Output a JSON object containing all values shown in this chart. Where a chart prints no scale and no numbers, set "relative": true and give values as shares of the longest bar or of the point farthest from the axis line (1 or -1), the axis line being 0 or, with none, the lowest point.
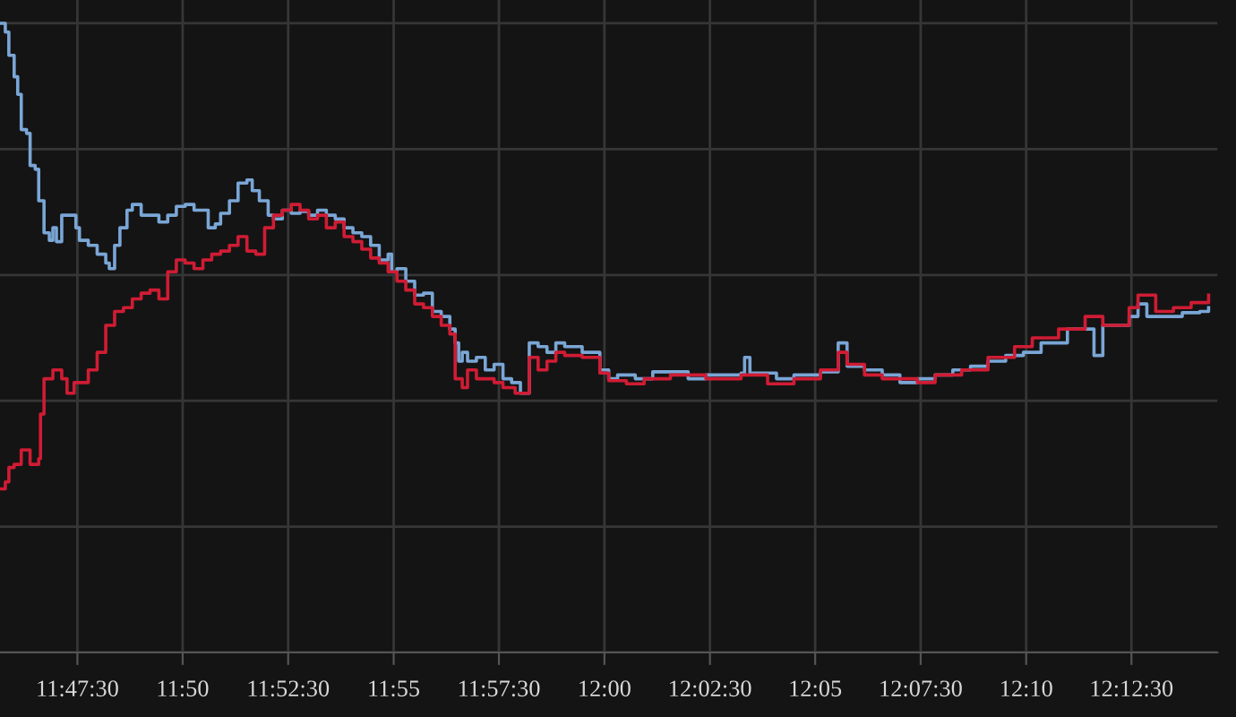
{
  "chart_data": {
    "type": "step",
    "relative": true,
    "grid": true,
    "xlim": [
      11.7611,
      12.2423
    ],
    "xticks": [
      {
        "value": 11.7917,
        "label": "11:47:30"
      },
      {
        "value": 11.8333,
        "label": "11:50"
      },
      {
        "value": 11.875,
        "label": "11:52:30"
      },
      {
        "value": 11.9167,
        "label": "11:55"
      },
      {
        "value": 11.9583,
        "label": "11:57:30"
      },
      {
        "value": 12.0,
        "label": "12:00"
      },
      {
        "value": 12.0417,
        "label": "12:02:30"
      },
      {
        "value": 12.0833,
        "label": "12:05"
      },
      {
        "value": 12.125,
        "label": "12:07:30"
      },
      {
        "value": 12.1667,
        "label": "12:10"
      },
      {
        "value": 12.2083,
        "label": "12:12:30"
      }
    ],
    "series": [
      {
        "color": "#7aa6d6",
        "x": [
          11.7611,
          11.7632,
          11.7646,
          11.7667,
          11.7681,
          11.7695,
          11.7716,
          11.773,
          11.775,
          11.7764,
          11.7785,
          11.7806,
          11.782,
          11.7834,
          11.7855,
          11.789,
          11.7911,
          11.7925,
          11.796,
          11.7995,
          11.8029,
          11.8043,
          11.8064,
          11.8085,
          11.8113,
          11.8134,
          11.8169,
          11.8204,
          11.8239,
          11.8274,
          11.8308,
          11.8343,
          11.8378,
          11.8434,
          11.8462,
          11.8483,
          11.8518,
          11.8552,
          11.8587,
          11.8608,
          11.8636,
          11.8671,
          11.8692,
          11.8727,
          11.8762,
          11.8797,
          11.8831,
          11.8866,
          11.8901,
          11.8936,
          11.8971,
          11.9006,
          11.9041,
          11.9076,
          11.911,
          11.9145,
          11.9159,
          11.918,
          11.9215,
          11.925,
          11.9285,
          11.932,
          11.9355,
          11.9389,
          11.941,
          11.9424,
          11.9438,
          11.9459,
          11.9494,
          11.9529,
          11.9564,
          11.9599,
          11.9633,
          11.9668,
          11.9703,
          11.9738,
          11.9773,
          11.9808,
          11.9843,
          11.9912,
          11.9982,
          12.0017,
          12.0052,
          12.0122,
          12.0191,
          12.0261,
          12.0331,
          12.0401,
          12.054,
          12.0554,
          12.0575,
          12.068,
          12.0749,
          12.0854,
          12.0924,
          12.0959,
          12.1028,
          12.1098,
          12.1168,
          12.1237,
          12.1307,
          12.1377,
          12.1447,
          12.1516,
          12.1586,
          12.1656,
          12.1726,
          12.183,
          12.1935,
          12.197,
          12.2074,
          12.2109,
          12.2144,
          12.2214,
          12.2284,
          12.2353,
          12.2388
        ],
        "values": [
          1.0,
          0.986,
          0.949,
          0.915,
          0.887,
          0.831,
          0.825,
          0.774,
          0.768,
          0.718,
          0.667,
          0.655,
          0.675,
          0.653,
          0.695,
          0.695,
          0.675,
          0.655,
          0.647,
          0.633,
          0.619,
          0.61,
          0.647,
          0.675,
          0.703,
          0.712,
          0.695,
          0.695,
          0.684,
          0.695,
          0.709,
          0.712,
          0.703,
          0.675,
          0.681,
          0.698,
          0.718,
          0.746,
          0.751,
          0.734,
          0.718,
          0.695,
          0.689,
          0.703,
          0.698,
          0.701,
          0.695,
          0.703,
          0.695,
          0.689,
          0.675,
          0.667,
          0.661,
          0.647,
          0.624,
          0.633,
          0.605,
          0.61,
          0.59,
          0.568,
          0.571,
          0.542,
          0.534,
          0.514,
          0.492,
          0.463,
          0.477,
          0.463,
          0.469,
          0.449,
          0.458,
          0.435,
          0.429,
          0.412,
          0.492,
          0.486,
          0.477,
          0.492,
          0.486,
          0.477,
          0.449,
          0.435,
          0.441,
          0.435,
          0.446,
          0.446,
          0.435,
          0.441,
          0.444,
          0.469,
          0.444,
          0.435,
          0.441,
          0.446,
          0.492,
          0.455,
          0.449,
          0.441,
          0.429,
          0.435,
          0.441,
          0.449,
          0.455,
          0.463,
          0.472,
          0.477,
          0.492,
          0.514,
          0.472,
          0.52,
          0.534,
          0.554,
          0.534,
          0.534,
          0.54,
          0.542,
          0.548
        ]
      },
      {
        "color": "#d01c34",
        "x": [
          11.7611,
          11.7632,
          11.7646,
          11.7667,
          11.7695,
          11.7716,
          11.773,
          11.7764,
          11.7771,
          11.7785,
          11.782,
          11.7855,
          11.7876,
          11.7904,
          11.796,
          11.7995,
          11.8029,
          11.8064,
          11.8099,
          11.8134,
          11.8169,
          11.8204,
          11.8239,
          11.8274,
          11.8308,
          11.8343,
          11.8378,
          11.8413,
          11.8448,
          11.8483,
          11.8518,
          11.8552,
          11.8587,
          11.8622,
          11.8657,
          11.8692,
          11.8727,
          11.8762,
          11.8797,
          11.8831,
          11.8866,
          11.8901,
          11.8936,
          11.8971,
          11.9006,
          11.9041,
          11.9076,
          11.911,
          11.9145,
          11.918,
          11.9215,
          11.925,
          11.9285,
          11.932,
          11.9355,
          11.9389,
          11.941,
          11.9438,
          11.9459,
          11.9494,
          11.9564,
          11.9599,
          11.9647,
          11.9703,
          11.9738,
          11.9773,
          11.9808,
          11.9843,
          11.9912,
          11.9982,
          12.0017,
          12.0087,
          12.0157,
          12.0261,
          12.0401,
          12.054,
          12.0645,
          12.0749,
          12.0854,
          12.0924,
          12.0959,
          12.1028,
          12.1098,
          12.1168,
          12.1237,
          12.1307,
          12.1412,
          12.1516,
          12.1621,
          12.1691,
          12.1795,
          12.19,
          12.197,
          12.2074,
          12.2109,
          12.2179,
          12.2249,
          12.2319,
          12.2388
        ],
        "values": [
          0.26,
          0.271,
          0.294,
          0.299,
          0.322,
          0.322,
          0.299,
          0.308,
          0.379,
          0.435,
          0.449,
          0.435,
          0.412,
          0.429,
          0.449,
          0.477,
          0.52,
          0.542,
          0.548,
          0.562,
          0.571,
          0.576,
          0.562,
          0.605,
          0.624,
          0.619,
          0.61,
          0.624,
          0.633,
          0.638,
          0.647,
          0.661,
          0.638,
          0.633,
          0.675,
          0.695,
          0.703,
          0.712,
          0.703,
          0.689,
          0.695,
          0.675,
          0.684,
          0.661,
          0.653,
          0.641,
          0.627,
          0.619,
          0.605,
          0.59,
          0.576,
          0.554,
          0.548,
          0.534,
          0.52,
          0.506,
          0.435,
          0.421,
          0.449,
          0.435,
          0.429,
          0.421,
          0.412,
          0.469,
          0.449,
          0.463,
          0.477,
          0.472,
          0.469,
          0.444,
          0.432,
          0.427,
          0.435,
          0.441,
          0.435,
          0.441,
          0.427,
          0.435,
          0.449,
          0.477,
          0.458,
          0.441,
          0.435,
          0.435,
          0.429,
          0.441,
          0.449,
          0.469,
          0.486,
          0.5,
          0.514,
          0.534,
          0.52,
          0.548,
          0.568,
          0.542,
          0.548,
          0.556,
          0.568
        ]
      }
    ]
  }
}
